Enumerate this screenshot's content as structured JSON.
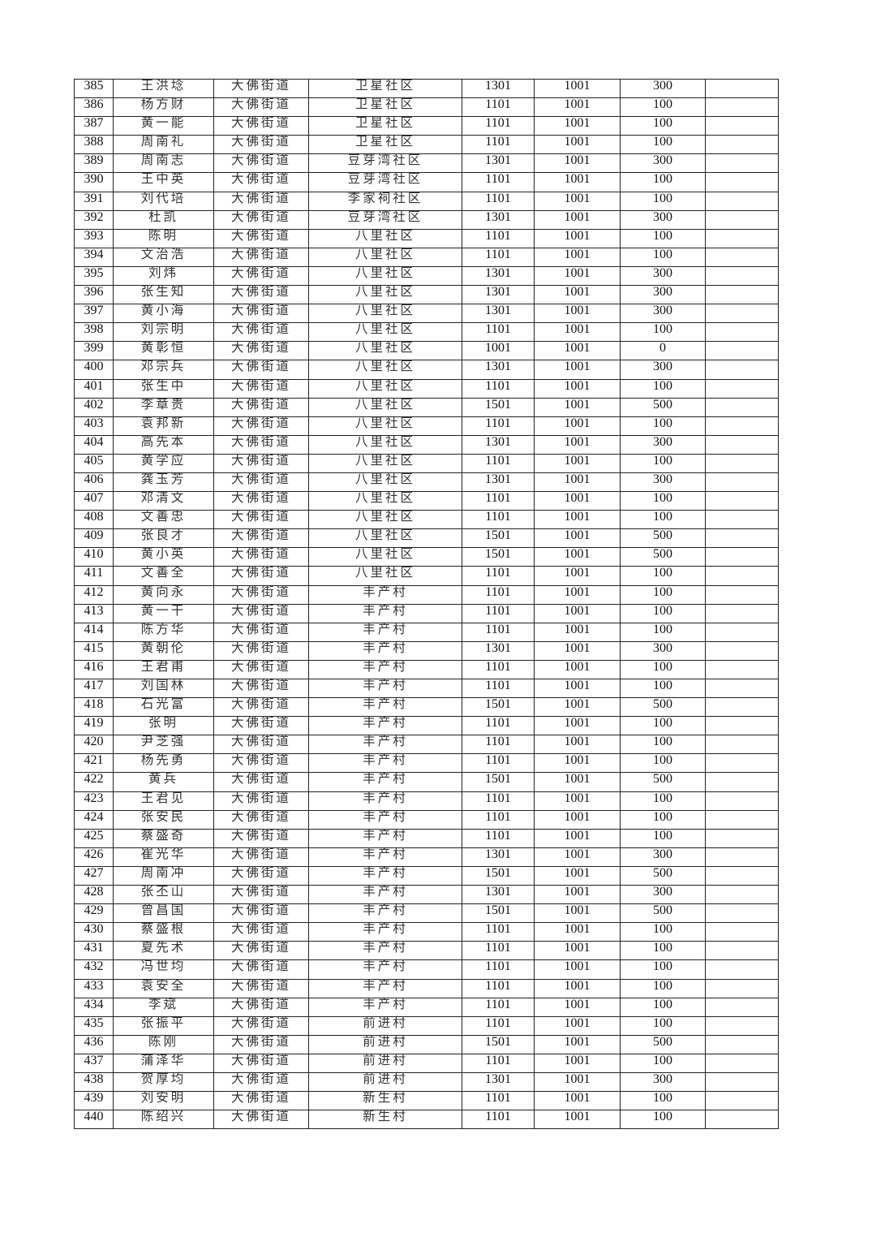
{
  "table": {
    "rows": [
      [
        "385",
        "王洪埝",
        "大佛街道",
        "卫星社区",
        "1301",
        "1001",
        "300",
        ""
      ],
      [
        "386",
        "杨方财",
        "大佛街道",
        "卫星社区",
        "1101",
        "1001",
        "100",
        ""
      ],
      [
        "387",
        "黄一能",
        "大佛街道",
        "卫星社区",
        "1101",
        "1001",
        "100",
        ""
      ],
      [
        "388",
        "周南礼",
        "大佛街道",
        "卫星社区",
        "1101",
        "1001",
        "100",
        ""
      ],
      [
        "389",
        "周南志",
        "大佛街道",
        "豆芽湾社区",
        "1301",
        "1001",
        "300",
        ""
      ],
      [
        "390",
        "王中英",
        "大佛街道",
        "豆芽湾社区",
        "1101",
        "1001",
        "100",
        ""
      ],
      [
        "391",
        "刘代培",
        "大佛街道",
        "李家祠社区",
        "1101",
        "1001",
        "100",
        ""
      ],
      [
        "392",
        "杜凯",
        "大佛街道",
        "豆芽湾社区",
        "1301",
        "1001",
        "300",
        ""
      ],
      [
        "393",
        "陈明",
        "大佛街道",
        "八里社区",
        "1101",
        "1001",
        "100",
        ""
      ],
      [
        "394",
        "文治浩",
        "大佛街道",
        "八里社区",
        "1101",
        "1001",
        "100",
        ""
      ],
      [
        "395",
        "刘炜",
        "大佛街道",
        "八里社区",
        "1301",
        "1001",
        "300",
        ""
      ],
      [
        "396",
        "张生知",
        "大佛街道",
        "八里社区",
        "1301",
        "1001",
        "300",
        ""
      ],
      [
        "397",
        "黄小海",
        "大佛街道",
        "八里社区",
        "1301",
        "1001",
        "300",
        ""
      ],
      [
        "398",
        "刘宗明",
        "大佛街道",
        "八里社区",
        "1101",
        "1001",
        "100",
        ""
      ],
      [
        "399",
        "黄彰恒",
        "大佛街道",
        "八里社区",
        "1001",
        "1001",
        "0",
        ""
      ],
      [
        "400",
        "邓宗兵",
        "大佛街道",
        "八里社区",
        "1301",
        "1001",
        "300",
        ""
      ],
      [
        "401",
        "张生中",
        "大佛街道",
        "八里社区",
        "1101",
        "1001",
        "100",
        ""
      ],
      [
        "402",
        "李章贵",
        "大佛街道",
        "八里社区",
        "1501",
        "1001",
        "500",
        ""
      ],
      [
        "403",
        "袁邦新",
        "大佛街道",
        "八里社区",
        "1101",
        "1001",
        "100",
        ""
      ],
      [
        "404",
        "高先本",
        "大佛街道",
        "八里社区",
        "1301",
        "1001",
        "300",
        ""
      ],
      [
        "405",
        "黄学应",
        "大佛街道",
        "八里社区",
        "1101",
        "1001",
        "100",
        ""
      ],
      [
        "406",
        "龚玉芳",
        "大佛街道",
        "八里社区",
        "1301",
        "1001",
        "300",
        ""
      ],
      [
        "407",
        "邓清文",
        "大佛街道",
        "八里社区",
        "1101",
        "1001",
        "100",
        ""
      ],
      [
        "408",
        "文善忠",
        "大佛街道",
        "八里社区",
        "1101",
        "1001",
        "100",
        ""
      ],
      [
        "409",
        "张良才",
        "大佛街道",
        "八里社区",
        "1501",
        "1001",
        "500",
        ""
      ],
      [
        "410",
        "黄小英",
        "大佛街道",
        "八里社区",
        "1501",
        "1001",
        "500",
        ""
      ],
      [
        "411",
        "文善全",
        "大佛街道",
        "八里社区",
        "1101",
        "1001",
        "100",
        ""
      ],
      [
        "412",
        "黄向永",
        "大佛街道",
        "丰产村",
        "1101",
        "1001",
        "100",
        ""
      ],
      [
        "413",
        "黄一干",
        "大佛街道",
        "丰产村",
        "1101",
        "1001",
        "100",
        ""
      ],
      [
        "414",
        "陈方华",
        "大佛街道",
        "丰产村",
        "1101",
        "1001",
        "100",
        ""
      ],
      [
        "415",
        "黄朝伦",
        "大佛街道",
        "丰产村",
        "1301",
        "1001",
        "300",
        ""
      ],
      [
        "416",
        "王君甫",
        "大佛街道",
        "丰产村",
        "1101",
        "1001",
        "100",
        ""
      ],
      [
        "417",
        "刘国林",
        "大佛街道",
        "丰产村",
        "1101",
        "1001",
        "100",
        ""
      ],
      [
        "418",
        "石光富",
        "大佛街道",
        "丰产村",
        "1501",
        "1001",
        "500",
        ""
      ],
      [
        "419",
        "张明",
        "大佛街道",
        "丰产村",
        "1101",
        "1001",
        "100",
        ""
      ],
      [
        "420",
        "尹芝强",
        "大佛街道",
        "丰产村",
        "1101",
        "1001",
        "100",
        ""
      ],
      [
        "421",
        "杨先勇",
        "大佛街道",
        "丰产村",
        "1101",
        "1001",
        "100",
        ""
      ],
      [
        "422",
        "黄兵",
        "大佛街道",
        "丰产村",
        "1501",
        "1001",
        "500",
        ""
      ],
      [
        "423",
        "王君见",
        "大佛街道",
        "丰产村",
        "1101",
        "1001",
        "100",
        ""
      ],
      [
        "424",
        "张安民",
        "大佛街道",
        "丰产村",
        "1101",
        "1001",
        "100",
        ""
      ],
      [
        "425",
        "蔡盛奇",
        "大佛街道",
        "丰产村",
        "1101",
        "1001",
        "100",
        ""
      ],
      [
        "426",
        "崔光华",
        "大佛街道",
        "丰产村",
        "1301",
        "1001",
        "300",
        ""
      ],
      [
        "427",
        "周南冲",
        "大佛街道",
        "丰产村",
        "1501",
        "1001",
        "500",
        ""
      ],
      [
        "428",
        "张丕山",
        "大佛街道",
        "丰产村",
        "1301",
        "1001",
        "300",
        ""
      ],
      [
        "429",
        "曾昌国",
        "大佛街道",
        "丰产村",
        "1501",
        "1001",
        "500",
        ""
      ],
      [
        "430",
        "蔡盛根",
        "大佛街道",
        "丰产村",
        "1101",
        "1001",
        "100",
        ""
      ],
      [
        "431",
        "夏先术",
        "大佛街道",
        "丰产村",
        "1101",
        "1001",
        "100",
        ""
      ],
      [
        "432",
        "冯世均",
        "大佛街道",
        "丰产村",
        "1101",
        "1001",
        "100",
        ""
      ],
      [
        "433",
        "袁安全",
        "大佛街道",
        "丰产村",
        "1101",
        "1001",
        "100",
        ""
      ],
      [
        "434",
        "李斌",
        "大佛街道",
        "丰产村",
        "1101",
        "1001",
        "100",
        ""
      ],
      [
        "435",
        "张振平",
        "大佛街道",
        "前进村",
        "1101",
        "1001",
        "100",
        ""
      ],
      [
        "436",
        "陈刚",
        "大佛街道",
        "前进村",
        "1501",
        "1001",
        "500",
        ""
      ],
      [
        "437",
        "蒲泽华",
        "大佛街道",
        "前进村",
        "1101",
        "1001",
        "100",
        ""
      ],
      [
        "438",
        "贺厚均",
        "大佛街道",
        "前进村",
        "1301",
        "1001",
        "300",
        ""
      ],
      [
        "439",
        "刘安明",
        "大佛街道",
        "新生村",
        "1101",
        "1001",
        "100",
        ""
      ],
      [
        "440",
        "陈绍兴",
        "大佛街道",
        "新生村",
        "1101",
        "1001",
        "100",
        ""
      ]
    ]
  }
}
